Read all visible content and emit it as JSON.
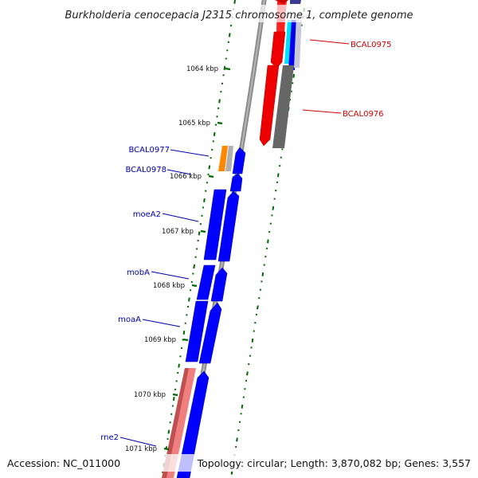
{
  "title": "Burkholderia cenocepacia J2315 chromosome 1, complete genome",
  "footer": {
    "accession": "Accession: NC_011000",
    "summary": "Topology: circular; Length: 3,870,082 bp; Genes: 3,557"
  },
  "ruler": {
    "ticks": [
      "1064 kbp",
      "1065 kbp",
      "1066 kbp",
      "1067 kbp",
      "1068 kbp",
      "1069 kbp",
      "1070 kbp",
      "1071 kbp"
    ]
  },
  "gene_labels": {
    "right": [
      {
        "name": "BCAL0975",
        "color": "#cc0000"
      },
      {
        "name": "BCAL0976",
        "color": "#cc0000"
      }
    ],
    "left": [
      {
        "name": "BCAL0977",
        "color": "#0000aa"
      },
      {
        "name": "BCAL0978",
        "color": "#0000aa"
      },
      {
        "name": "moeA2",
        "color": "#0000aa"
      },
      {
        "name": "mobA",
        "color": "#0000aa"
      },
      {
        "name": "moaA",
        "color": "#0000aa"
      },
      {
        "name": "rne2",
        "color": "#0000aa"
      }
    ]
  },
  "colors": {
    "reverse_strand_gene": "#ff0000",
    "forward_strand_gene": "#0000ff",
    "rna_gene": "#ff8800",
    "pseudo_gene": "#666666",
    "highlight_gene": "#f08080",
    "backbone": "#808080",
    "gc_skew_dash": "#006600"
  }
}
